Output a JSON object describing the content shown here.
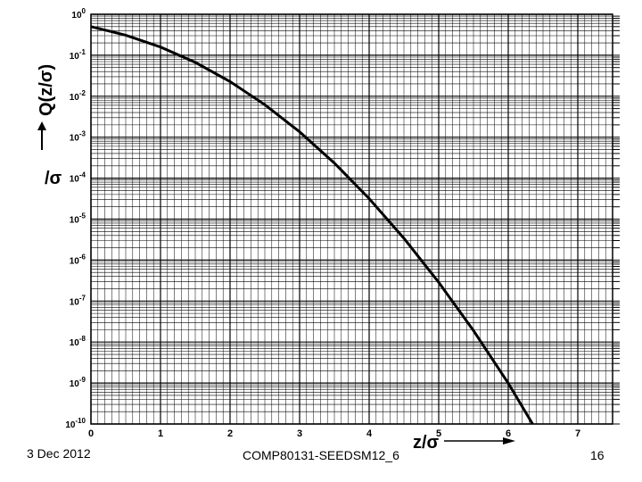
{
  "chart_data": {
    "type": "line",
    "title": "",
    "xlabel": "z/σ",
    "ylabel": "Q(z/σ)",
    "ylabel_extra": "/σ",
    "y_scale": "log",
    "xlim": [
      0,
      7.5
    ],
    "ylim_exponents": [
      -10,
      0
    ],
    "x_ticks": [
      "0",
      "1",
      "2",
      "3",
      "4",
      "5",
      "6",
      "7"
    ],
    "y_tick_exponents": [
      "0",
      "-1",
      "-2",
      "-3",
      "-4",
      "-5",
      "-6",
      "-7",
      "-8",
      "-9",
      "-10"
    ],
    "grid": true,
    "series": [
      {
        "x": [
          0,
          0.5,
          1,
          1.5,
          2,
          2.5,
          3,
          3.5,
          4,
          4.5,
          5,
          5.5,
          6,
          6.35
        ],
        "y": [
          0.5,
          0.3085,
          0.1587,
          0.0668,
          0.02275,
          0.00621,
          0.00135,
          0.000233,
          3.17e-05,
          3.4e-06,
          2.87e-07,
          1.9e-08,
          9.9e-10,
          1e-10
        ]
      }
    ]
  },
  "footer": {
    "date": "3 Dec 2012",
    "course": "COMP80131-SEEDSM12_6",
    "page": "16"
  }
}
